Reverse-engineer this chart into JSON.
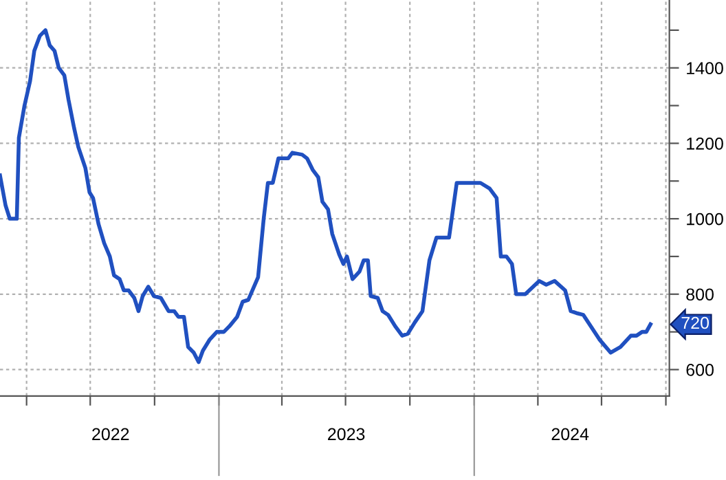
{
  "chart_data": {
    "type": "line",
    "x": [
      "2022-02-22",
      "2022-03-02",
      "2022-03-08",
      "2022-03-18",
      "2022-03-21",
      "2022-03-29",
      "2022-04-06",
      "2022-04-12",
      "2022-04-20",
      "2022-04-28",
      "2022-05-04",
      "2022-05-11",
      "2022-05-17",
      "2022-05-25",
      "2022-05-31",
      "2022-06-08",
      "2022-06-14",
      "2022-06-24",
      "2022-06-30",
      "2022-07-05",
      "2022-07-13",
      "2022-07-21",
      "2022-07-29",
      "2022-08-04",
      "2022-08-12",
      "2022-08-18",
      "2022-08-25",
      "2022-09-02",
      "2022-09-08",
      "2022-09-14",
      "2022-09-22",
      "2022-09-30",
      "2022-10-10",
      "2022-10-21",
      "2022-10-29",
      "2022-11-04",
      "2022-11-12",
      "2022-11-18",
      "2022-11-26",
      "2022-12-03",
      "2022-12-09",
      "2022-12-19",
      "2022-12-29",
      "2023-01-08",
      "2023-01-16",
      "2023-01-27",
      "2023-02-04",
      "2023-02-12",
      "2023-02-26",
      "2023-03-06",
      "2023-03-12",
      "2023-03-19",
      "2023-03-27",
      "2023-04-10",
      "2023-04-16",
      "2023-04-30",
      "2023-05-07",
      "2023-05-15",
      "2023-05-23",
      "2023-05-29",
      "2023-06-06",
      "2023-06-12",
      "2023-06-22",
      "2023-06-28",
      "2023-07-03",
      "2023-07-11",
      "2023-07-21",
      "2023-07-27",
      "2023-08-02",
      "2023-08-06",
      "2023-08-16",
      "2023-08-23",
      "2023-08-31",
      "2023-09-10",
      "2023-09-20",
      "2023-09-28",
      "2023-10-08",
      "2023-10-19",
      "2023-10-29",
      "2023-11-08",
      "2023-11-26",
      "2023-12-07",
      "2024-01-10",
      "2024-01-23",
      "2024-02-02",
      "2024-02-08",
      "2024-02-16",
      "2024-02-24",
      "2024-03-01",
      "2024-03-14",
      "2024-04-03",
      "2024-04-13",
      "2024-04-25",
      "2024-05-10",
      "2024-05-18",
      "2024-05-26",
      "2024-06-05",
      "2024-06-28",
      "2024-07-14",
      "2024-07-28",
      "2024-08-12",
      "2024-08-20",
      "2024-08-28",
      "2024-09-03",
      "2024-09-09"
    ],
    "series": [
      {
        "color": "#2050c0",
        "values": [
          1115,
          1035,
          1000,
          1000,
          1215,
          1300,
          1365,
          1445,
          1485,
          1500,
          1460,
          1445,
          1400,
          1380,
          1315,
          1240,
          1190,
          1135,
          1070,
          1055,
          985,
          935,
          900,
          850,
          840,
          810,
          810,
          790,
          755,
          795,
          820,
          795,
          790,
          755,
          755,
          740,
          740,
          660,
          645,
          620,
          650,
          680,
          700,
          700,
          715,
          740,
          780,
          785,
          845,
          1000,
          1095,
          1095,
          1160,
          1160,
          1175,
          1170,
          1160,
          1130,
          1110,
          1045,
          1025,
          960,
          905,
          880,
          900,
          840,
          860,
          890,
          890,
          795,
          790,
          755,
          745,
          715,
          690,
          695,
          725,
          755,
          890,
          950,
          950,
          1095,
          1095,
          1080,
          1055,
          900,
          900,
          880,
          800,
          800,
          835,
          825,
          835,
          810,
          755,
          750,
          745,
          680,
          645,
          660,
          690,
          690,
          700,
          700,
          720
        ]
      }
    ],
    "xlim": [
      "2022-02-22",
      "2024-10-06"
    ],
    "xticks": [
      {
        "value": "2022-04-01",
        "label": null
      },
      {
        "value": "2022-07-01",
        "label": null
      },
      {
        "value": "2022-10-01",
        "label": null
      },
      {
        "value": "2023-01-01",
        "label": null
      },
      {
        "value": "2023-04-01",
        "label": null
      },
      {
        "value": "2023-07-01",
        "label": null
      },
      {
        "value": "2023-10-01",
        "label": null
      },
      {
        "value": "2024-01-01",
        "label": null
      },
      {
        "value": "2024-04-01",
        "label": null
      },
      {
        "value": "2024-07-01",
        "label": null
      },
      {
        "value": "2024-10-01",
        "label": null
      },
      {
        "value": "2022-07-30",
        "label": "2022"
      },
      {
        "value": "2023-07-02",
        "label": "2023"
      },
      {
        "value": "2024-05-17",
        "label": "2024"
      }
    ],
    "ylim": [
      530,
      1580
    ],
    "yticks": [
      600,
      {
        "value": 700,
        "label": null
      },
      800,
      {
        "value": 900,
        "label": null
      },
      1000,
      {
        "value": 1100,
        "label": null
      },
      1200,
      {
        "value": 1300,
        "label": null
      },
      1400,
      {
        "value": 1500,
        "label": null
      }
    ],
    "grid": true,
    "annotations": [
      {
        "text": "720",
        "x": "2024-09-09",
        "y": 720
      }
    ]
  }
}
